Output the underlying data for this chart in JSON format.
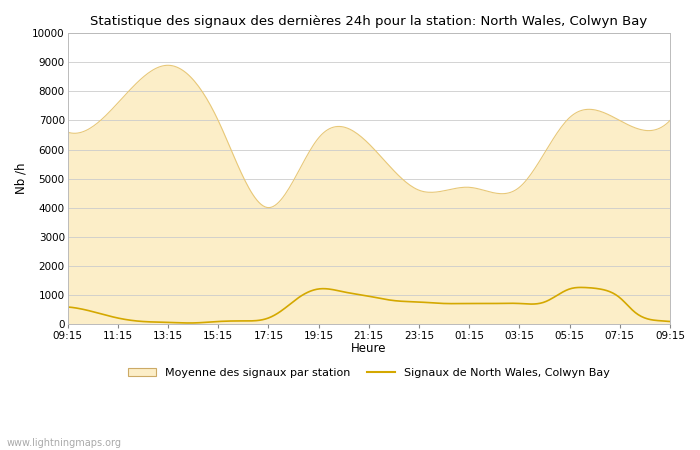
{
  "title": "Statistique des signaux des dernières 24h pour la station: North Wales, Colwyn Bay",
  "xlabel": "Heure",
  "ylabel": "Nb /h",
  "watermark": "www.lightningmaps.org",
  "x_ticks": [
    "09:15",
    "11:15",
    "13:15",
    "15:15",
    "17:15",
    "19:15",
    "21:15",
    "23:15",
    "01:15",
    "03:15",
    "05:15",
    "07:15",
    "09:15"
  ],
  "ylim": [
    0,
    10000
  ],
  "yticks": [
    0,
    1000,
    2000,
    3000,
    4000,
    5000,
    6000,
    7000,
    8000,
    9000,
    10000
  ],
  "fill_color": "#FCEEC8",
  "fill_edge_color": "#E8C878",
  "line_color": "#D4A800",
  "background_color": "#ffffff",
  "grid_color": "#cccccc",
  "legend_fill_label": "Moyenne des signaux par station",
  "legend_line_label": "Signaux de North Wales, Colwyn Bay",
  "avg_x": [
    0,
    1,
    2,
    3,
    4,
    5,
    6,
    7,
    8,
    9,
    10,
    11,
    12
  ],
  "avg_y": [
    6600,
    7600,
    8900,
    7000,
    4000,
    6400,
    6200,
    4600,
    4700,
    4700,
    7100,
    7000,
    7000
  ],
  "station_x": [
    0,
    0.5,
    1,
    1.5,
    2,
    2.5,
    3,
    3.5,
    4,
    4.3,
    4.6,
    5,
    5.5,
    6,
    6.5,
    7,
    7.5,
    8,
    8.5,
    9,
    9.5,
    10,
    10.3,
    10.6,
    11,
    11.3,
    11.6,
    12
  ],
  "station_y": [
    580,
    420,
    200,
    80,
    50,
    30,
    80,
    100,
    200,
    500,
    900,
    1200,
    1100,
    950,
    800,
    750,
    700,
    700,
    700,
    700,
    750,
    1200,
    1250,
    1200,
    900,
    400,
    150,
    80
  ]
}
